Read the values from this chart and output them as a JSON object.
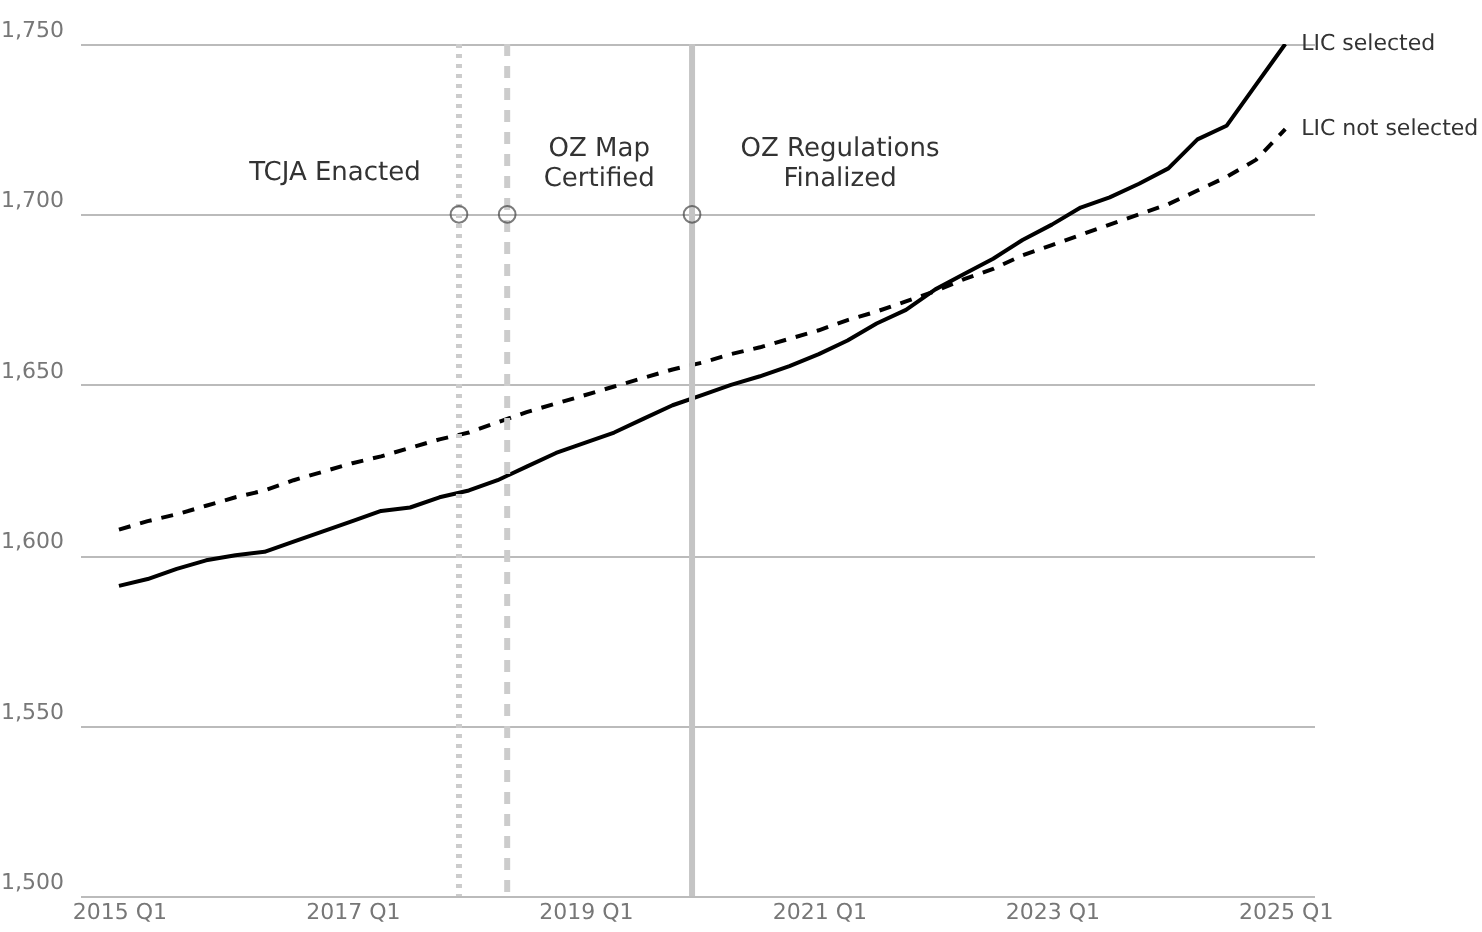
{
  "chart_data": {
    "type": "line",
    "x": [
      "2015-01",
      "2015-04",
      "2015-07",
      "2015-10",
      "2016-01",
      "2016-04",
      "2016-07",
      "2016-10",
      "2017-01",
      "2017-04",
      "2017-07",
      "2017-10",
      "2018-01",
      "2018-04",
      "2018-07",
      "2018-10",
      "2019-01",
      "2019-04",
      "2019-07",
      "2019-10",
      "2020-01",
      "2020-04",
      "2020-07",
      "2020-10",
      "2021-01",
      "2021-04",
      "2021-07",
      "2021-10",
      "2022-01",
      "2022-04",
      "2022-07",
      "2022-10",
      "2023-01",
      "2023-04",
      "2023-07",
      "2023-10",
      "2024-01",
      "2024-04",
      "2024-07",
      "2024-10",
      "2025-01"
    ],
    "series": [
      {
        "name": "LIC selected",
        "color": "#000000",
        "line_style": "solid",
        "values": [
          1591,
          1593,
          1596,
          1598.5,
          1600,
          1601,
          1604,
          1607,
          1610,
          1613,
          1614,
          1617,
          1619,
          1622,
          1626,
          1630,
          1633,
          1636,
          1640,
          1644,
          1647,
          1650,
          1652.5,
          1655.5,
          1659,
          1663,
          1668,
          1672,
          1678,
          1682.5,
          1687,
          1692.5,
          1697,
          1702,
          1705,
          1709,
          1713.5,
          1722,
          1726,
          1738,
          1750
        ]
      },
      {
        "name": "LIC not selected",
        "color": "#000000",
        "line_style": "dashed",
        "values": [
          1607.5,
          1610,
          1612,
          1614.5,
          1617,
          1619,
          1622,
          1624.5,
          1627,
          1629,
          1631.5,
          1634,
          1636,
          1639,
          1642,
          1644.5,
          1647,
          1649.5,
          1652,
          1654.5,
          1656.5,
          1659,
          1661,
          1663.5,
          1666,
          1669,
          1671.5,
          1674.5,
          1677.5,
          1681,
          1684,
          1688,
          1691,
          1694,
          1697,
          1700,
          1703,
          1707,
          1711,
          1716,
          1725
        ]
      }
    ],
    "xlim": [
      "2014-09-01",
      "2025-04-01"
    ],
    "xticks": [
      {
        "value": "2015-01",
        "label": "2015 Q1"
      },
      {
        "value": "2017-01",
        "label": "2017 Q1"
      },
      {
        "value": "2019-01",
        "label": "2019 Q1"
      },
      {
        "value": "2021-01",
        "label": "2021 Q1"
      },
      {
        "value": "2023-01",
        "label": "2023 Q1"
      },
      {
        "value": "2025-01",
        "label": "2025 Q1"
      }
    ],
    "ylim": [
      1500,
      1750
    ],
    "yticks": [
      {
        "value": 1500,
        "label": "1,500"
      },
      {
        "value": 1550,
        "label": "1,550"
      },
      {
        "value": 1600,
        "label": "1,600"
      },
      {
        "value": 1650,
        "label": "1,650"
      },
      {
        "value": 1700,
        "label": "1,700"
      },
      {
        "value": 1750,
        "label": "1,750"
      }
    ],
    "grid": "y",
    "ref_lines": [
      {
        "axis": "x",
        "value": "2017-12",
        "color": "#cccccc",
        "line_style": "dotted"
      },
      {
        "axis": "x",
        "value": "2018-05",
        "color": "#cccccc",
        "line_style": "dashed"
      },
      {
        "axis": "x",
        "value": "2019-12",
        "color": "#c4c4c4",
        "line_style": "solid"
      }
    ],
    "annotations": [
      {
        "text": "TCJA Enacted",
        "x": "2017-12",
        "y": 1700
      },
      {
        "text": "OZ Map\nCertified",
        "x": "2018-05",
        "y": 1700
      },
      {
        "text": "OZ Regulations\nFinalized",
        "x": "2019-12",
        "y": 1700
      }
    ]
  }
}
